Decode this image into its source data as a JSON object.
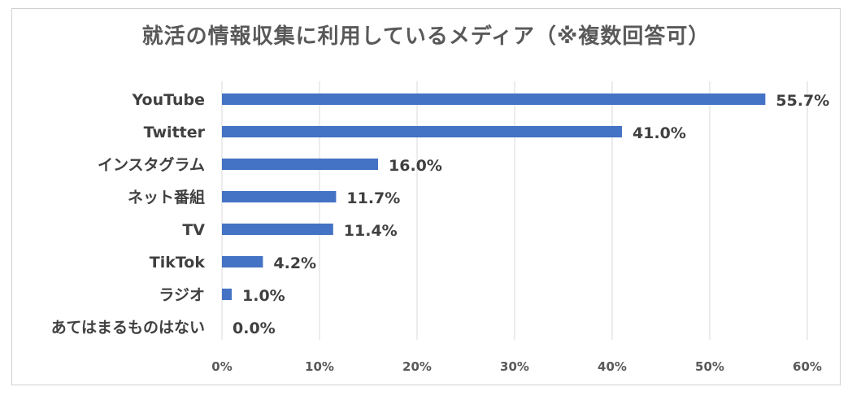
{
  "chart_data": {
    "type": "bar",
    "orientation": "horizontal",
    "title": "就活の情報収集に利用しているメディア（※複数回答可）",
    "categories": [
      "YouTube",
      "Twitter",
      "インスタグラム",
      "ネット番組",
      "TV",
      "TikTok",
      "ラジオ",
      "あてはまるものはない"
    ],
    "values": [
      55.7,
      41.0,
      16.0,
      11.7,
      11.4,
      4.2,
      1.0,
      0.0
    ],
    "value_labels": [
      "55.7%",
      "41.0%",
      "16.0%",
      "11.7%",
      "11.4%",
      "4.2%",
      "1.0%",
      "0.0%"
    ],
    "x_ticks": [
      0,
      10,
      20,
      30,
      40,
      50,
      60
    ],
    "x_tick_labels": [
      "0%",
      "10%",
      "20%",
      "30%",
      "40%",
      "50%",
      "60%"
    ],
    "xlim": [
      0,
      60
    ],
    "grid": "vertical",
    "legend": "none",
    "bar_color": "#4472c4"
  }
}
